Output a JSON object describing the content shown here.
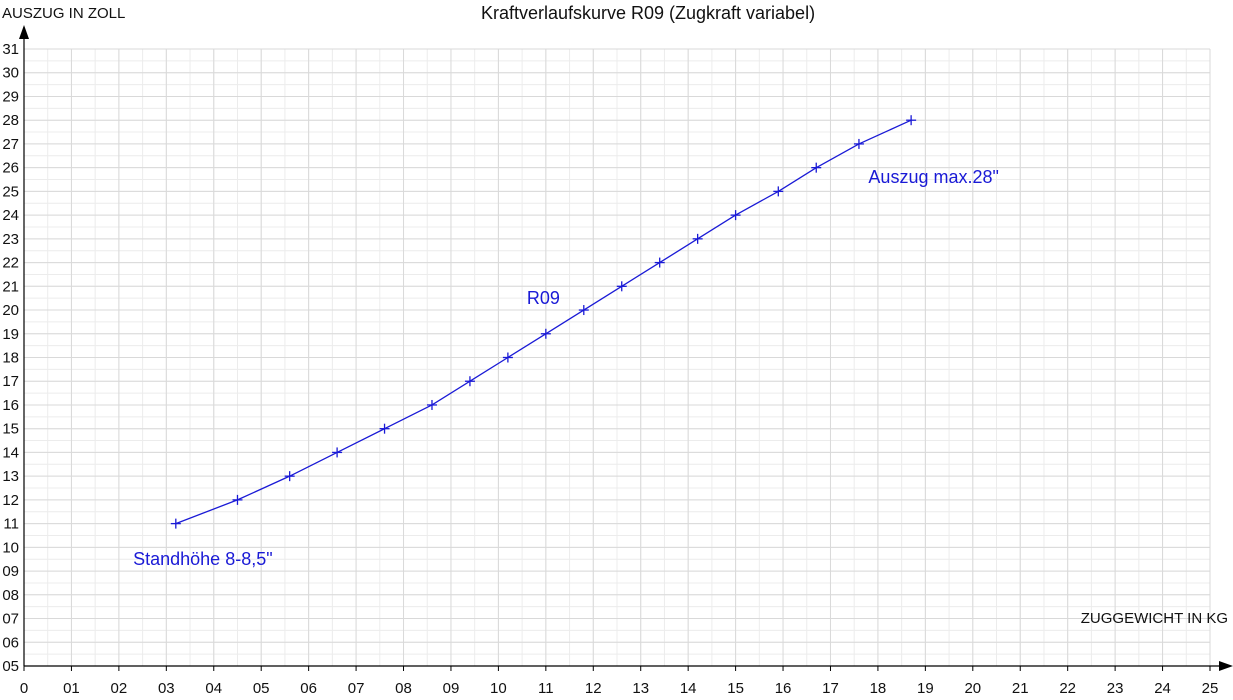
{
  "chart_data": {
    "type": "line",
    "title": "Kraftverlaufskurve R09 (Zugkraft variabel)",
    "xlabel": "ZUGGEWICHT IN KG",
    "ylabel": "AUSZUG IN ZOLL",
    "xlim": [
      0,
      25
    ],
    "ylim": [
      5,
      31
    ],
    "grid": true,
    "line_color": "#1a1ad6",
    "x_ticks": [
      "0",
      "01",
      "02",
      "03",
      "04",
      "05",
      "06",
      "07",
      "08",
      "09",
      "10",
      "11",
      "12",
      "13",
      "14",
      "15",
      "16",
      "17",
      "18",
      "19",
      "20",
      "21",
      "22",
      "23",
      "24",
      "25"
    ],
    "y_ticks": [
      "05",
      "06",
      "07",
      "08",
      "09",
      "10",
      "11",
      "12",
      "13",
      "14",
      "15",
      "16",
      "17",
      "18",
      "19",
      "20",
      "21",
      "22",
      "23",
      "24",
      "25",
      "26",
      "27",
      "28",
      "29",
      "30",
      "31"
    ],
    "series": [
      {
        "name": "R09",
        "x": [
          3.2,
          4.5,
          5.6,
          6.6,
          7.6,
          8.6,
          9.4,
          10.2,
          11.0,
          11.8,
          12.6,
          13.4,
          14.2,
          15.0,
          15.9,
          16.7,
          17.6,
          18.7
        ],
        "y": [
          11,
          12,
          13,
          14,
          15,
          16,
          17,
          18,
          19,
          20,
          21,
          22,
          23,
          24,
          25,
          26,
          27,
          28
        ]
      }
    ],
    "annotations": [
      {
        "text": "Standhöhe 8-8,5\"",
        "x": 2.3,
        "y": 9.5
      },
      {
        "text": "R09",
        "x": 10.6,
        "y": 20.5
      },
      {
        "text": "Auszug max.28\"",
        "x": 17.8,
        "y": 25.6
      }
    ]
  }
}
